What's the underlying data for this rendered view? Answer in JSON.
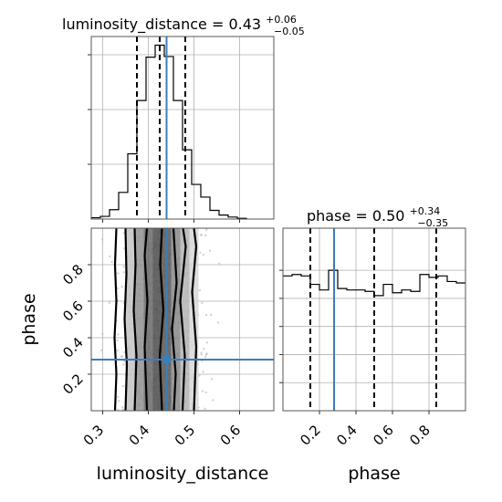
{
  "chart_data": [
    {
      "type": "histogram",
      "panel": "luminosity_distance marginal",
      "title": {
        "main": "luminosity_distance = 0.43",
        "sup": "+0.06",
        "sub": "−0.05"
      },
      "x_range": [
        0.275,
        0.675
      ],
      "bins": [
        0.275,
        0.295,
        0.315,
        0.335,
        0.355,
        0.375,
        0.395,
        0.415,
        0.435,
        0.455,
        0.475,
        0.495,
        0.515,
        0.535,
        0.555,
        0.575,
        0.595,
        0.615
      ],
      "counts": [
        2,
        4,
        14,
        40,
        98,
        178,
        243,
        261,
        244,
        178,
        104,
        52,
        33,
        13,
        6,
        3,
        1
      ],
      "quantiles": [
        0.375,
        0.425,
        0.481
      ],
      "truth": 0.44,
      "grid": true
    },
    {
      "type": "histogram",
      "panel": "phase marginal",
      "title": {
        "main": "phase = 0.50",
        "sup": "+0.34",
        "sub": "−0.35"
      },
      "x_range": [
        0.0,
        1.0
      ],
      "bins": [
        0.0,
        0.05,
        0.1,
        0.15,
        0.2,
        0.25,
        0.3,
        0.35,
        0.4,
        0.45,
        0.5,
        0.55,
        0.6,
        0.65,
        0.7,
        0.75,
        0.8,
        0.85,
        0.9,
        0.95,
        1.0
      ],
      "counts": [
        0.96,
        0.97,
        0.96,
        0.9,
        0.86,
        1.0,
        0.87,
        0.86,
        0.86,
        0.85,
        0.82,
        0.9,
        0.84,
        0.86,
        0.85,
        0.97,
        0.95,
        0.96,
        0.92,
        0.91
      ],
      "y_max": 1.3,
      "quantiles": [
        0.15,
        0.5,
        0.84
      ],
      "truth": 0.28,
      "xticks": [
        "0.2",
        "0.4",
        "0.6",
        "0.8"
      ],
      "grid": true
    },
    {
      "type": "scatter",
      "panel": "2D density (luminosity_distance vs phase)",
      "xlabel": "luminosity_distance",
      "ylabel": "phase",
      "x_range": [
        0.275,
        0.675
      ],
      "y_range": [
        0.0,
        1.0
      ],
      "xticks": [
        "0.3",
        "0.4",
        "0.5",
        "0.6"
      ],
      "yticks": [
        "0.2",
        "0.4",
        "0.6",
        "0.8"
      ],
      "truth": {
        "x": 0.44,
        "y": 0.28
      },
      "density_columns": [
        {
          "x": [
            0.35,
            0.37
          ],
          "level": 0.3
        },
        {
          "x": [
            0.37,
            0.39
          ],
          "level": 0.55
        },
        {
          "x": [
            0.39,
            0.41
          ],
          "level": 0.75
        },
        {
          "x": [
            0.41,
            0.43
          ],
          "level": 0.9
        },
        {
          "x": [
            0.43,
            0.45
          ],
          "level": 0.85
        },
        {
          "x": [
            0.45,
            0.47
          ],
          "level": 0.6
        },
        {
          "x": [
            0.47,
            0.49
          ],
          "level": 0.38
        },
        {
          "x": [
            0.49,
            0.51
          ],
          "level": 0.2
        }
      ],
      "contours": [
        [
          [
            0.327,
            0.0
          ],
          [
            0.33,
            0.2
          ],
          [
            0.326,
            0.4
          ],
          [
            0.33,
            0.6
          ],
          [
            0.327,
            0.8
          ],
          [
            0.33,
            1.0
          ]
        ],
        [
          [
            0.35,
            0.0
          ],
          [
            0.353,
            0.25
          ],
          [
            0.348,
            0.5
          ],
          [
            0.352,
            0.75
          ],
          [
            0.35,
            1.0
          ]
        ],
        [
          [
            0.37,
            0.0
          ],
          [
            0.374,
            0.3
          ],
          [
            0.368,
            0.55
          ],
          [
            0.372,
            0.8
          ],
          [
            0.37,
            1.0
          ]
        ],
        [
          [
            0.397,
            0.0
          ],
          [
            0.392,
            0.35
          ],
          [
            0.398,
            0.6
          ],
          [
            0.392,
            0.85
          ],
          [
            0.397,
            1.0
          ]
        ],
        [
          [
            0.43,
            0.0
          ],
          [
            0.425,
            0.3
          ],
          [
            0.433,
            0.55
          ],
          [
            0.426,
            0.8
          ],
          [
            0.43,
            1.0
          ]
        ],
        [
          [
            0.456,
            0.0
          ],
          [
            0.46,
            0.2
          ],
          [
            0.452,
            0.45
          ],
          [
            0.462,
            0.7
          ],
          [
            0.455,
            1.0
          ]
        ],
        [
          [
            0.475,
            0.0
          ],
          [
            0.48,
            0.3
          ],
          [
            0.47,
            0.6
          ],
          [
            0.482,
            0.9
          ],
          [
            0.476,
            1.0
          ]
        ],
        [
          [
            0.5,
            0.0
          ],
          [
            0.505,
            0.35
          ],
          [
            0.496,
            0.65
          ],
          [
            0.505,
            0.9
          ],
          [
            0.5,
            1.0
          ]
        ]
      ],
      "grid": true
    }
  ]
}
